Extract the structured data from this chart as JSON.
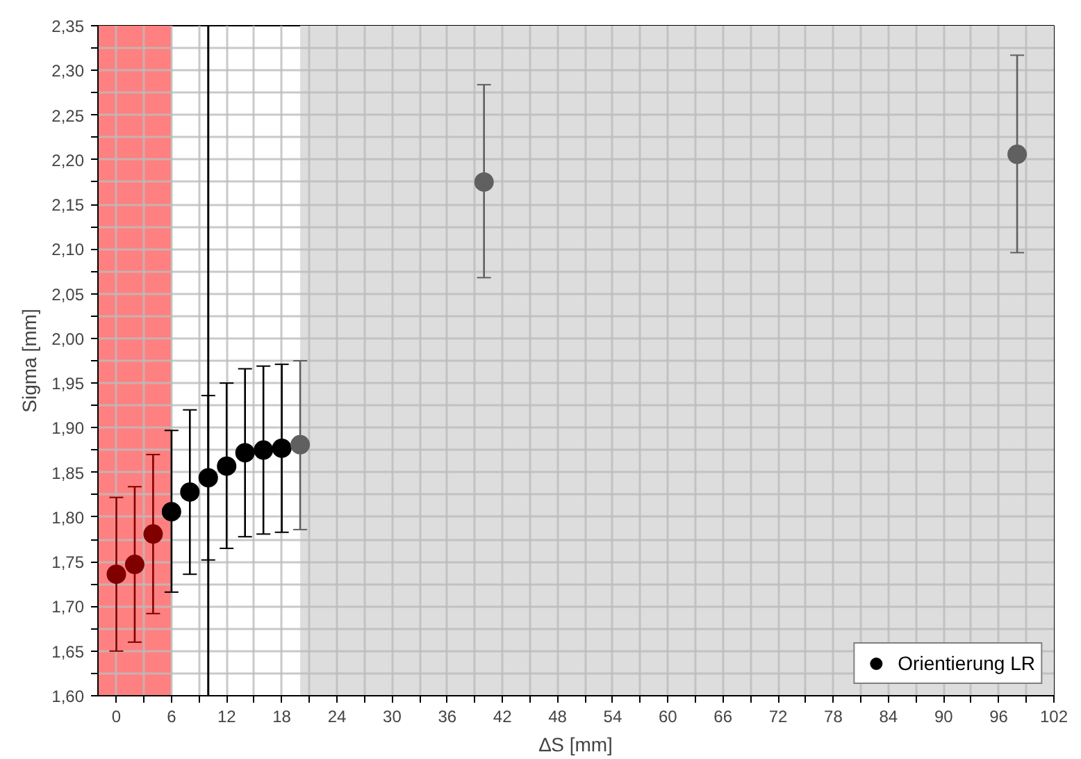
{
  "chart_data": {
    "type": "scatter",
    "xlabel": "∆S [mm]",
    "ylabel": "Sigma [mm]",
    "x": [
      0,
      2,
      4,
      6,
      8,
      10,
      12,
      14,
      16,
      18,
      20,
      40,
      98
    ],
    "series": [
      {
        "name": "Orientierung LR",
        "color": "#000000",
        "colors": [
          "#800000",
          "#800000",
          "#800000",
          "#000000",
          "#000000",
          "#000000",
          "#000000",
          "#000000",
          "#000000",
          "#000000",
          "#606060",
          "#606060",
          "#606060"
        ],
        "values": [
          1.736,
          1.747,
          1.781,
          1.806,
          1.828,
          1.844,
          1.857,
          1.872,
          1.875,
          1.877,
          1.881,
          2.175,
          2.206
        ],
        "errors": [
          [
            1.65,
            1.822
          ],
          [
            1.66,
            1.834
          ],
          [
            1.692,
            1.87
          ],
          [
            1.716,
            1.897
          ],
          [
            1.736,
            1.92
          ],
          [
            1.752,
            1.936
          ],
          [
            1.765,
            1.95
          ],
          [
            1.778,
            1.966
          ],
          [
            1.781,
            1.969
          ],
          [
            1.783,
            1.971
          ],
          [
            1.786,
            1.975
          ],
          [
            2.068,
            2.284
          ],
          [
            2.096,
            2.317
          ]
        ]
      }
    ],
    "xlim": [
      -2,
      102
    ],
    "xticks": [
      0,
      {
        "value": 3,
        "label": null
      },
      6,
      {
        "value": 9,
        "label": null
      },
      12,
      {
        "value": 15,
        "label": null
      },
      18,
      {
        "value": 21,
        "label": null
      },
      24,
      {
        "value": 27,
        "label": null
      },
      30,
      {
        "value": 33,
        "label": null
      },
      36,
      {
        "value": 39,
        "label": null
      },
      42,
      {
        "value": 45,
        "label": null
      },
      48,
      {
        "value": 51,
        "label": null
      },
      54,
      {
        "value": 57,
        "label": null
      },
      60,
      {
        "value": 63,
        "label": null
      },
      66,
      {
        "value": 69,
        "label": null
      },
      72,
      {
        "value": 75,
        "label": null
      },
      78,
      {
        "value": 81,
        "label": null
      },
      84,
      {
        "value": 87,
        "label": null
      },
      90,
      {
        "value": 93,
        "label": null
      },
      96,
      {
        "value": 99,
        "label": null
      },
      102
    ],
    "ylim": [
      1.6,
      2.35
    ],
    "yticks": [
      {
        "value": 1.6,
        "label": "1,60"
      },
      {
        "value": 1.625,
        "label": null
      },
      {
        "value": 1.65,
        "label": "1,65"
      },
      {
        "value": 1.675,
        "label": null
      },
      {
        "value": 1.7,
        "label": "1,70"
      },
      {
        "value": 1.725,
        "label": null
      },
      {
        "value": 1.75,
        "label": "1,75"
      },
      {
        "value": 1.775,
        "label": null
      },
      {
        "value": 1.8,
        "label": "1,80"
      },
      {
        "value": 1.825,
        "label": null
      },
      {
        "value": 1.85,
        "label": "1,85"
      },
      {
        "value": 1.875,
        "label": null
      },
      {
        "value": 1.9,
        "label": "1,90"
      },
      {
        "value": 1.925,
        "label": null
      },
      {
        "value": 1.95,
        "label": "1,95"
      },
      {
        "value": 1.975,
        "label": null
      },
      {
        "value": 2.0,
        "label": "2,00"
      },
      {
        "value": 2.025,
        "label": null
      },
      {
        "value": 2.05,
        "label": "2,05"
      },
      {
        "value": 2.075,
        "label": null
      },
      {
        "value": 2.1,
        "label": "2,10"
      },
      {
        "value": 2.125,
        "label": null
      },
      {
        "value": 2.15,
        "label": "2,15"
      },
      {
        "value": 2.175,
        "label": null
      },
      {
        "value": 2.2,
        "label": "2,20"
      },
      {
        "value": 2.225,
        "label": null
      },
      {
        "value": 2.25,
        "label": "2,25"
      },
      {
        "value": 2.275,
        "label": null
      },
      {
        "value": 2.3,
        "label": "2,30"
      },
      {
        "value": 2.325,
        "label": null
      },
      {
        "value": 2.35,
        "label": "2,35"
      }
    ],
    "bands": [
      {
        "axis": "x",
        "from": -2,
        "to": 6,
        "color": "#ff8080"
      },
      {
        "axis": "x",
        "from": 20,
        "to": 102,
        "color": "#dddddd"
      }
    ],
    "ref_lines": [
      {
        "axis": "x",
        "value": 10,
        "color": "#000000",
        "line_style": "solid"
      }
    ],
    "grid": true,
    "legend": "bottom right",
    "marker": "circle"
  }
}
